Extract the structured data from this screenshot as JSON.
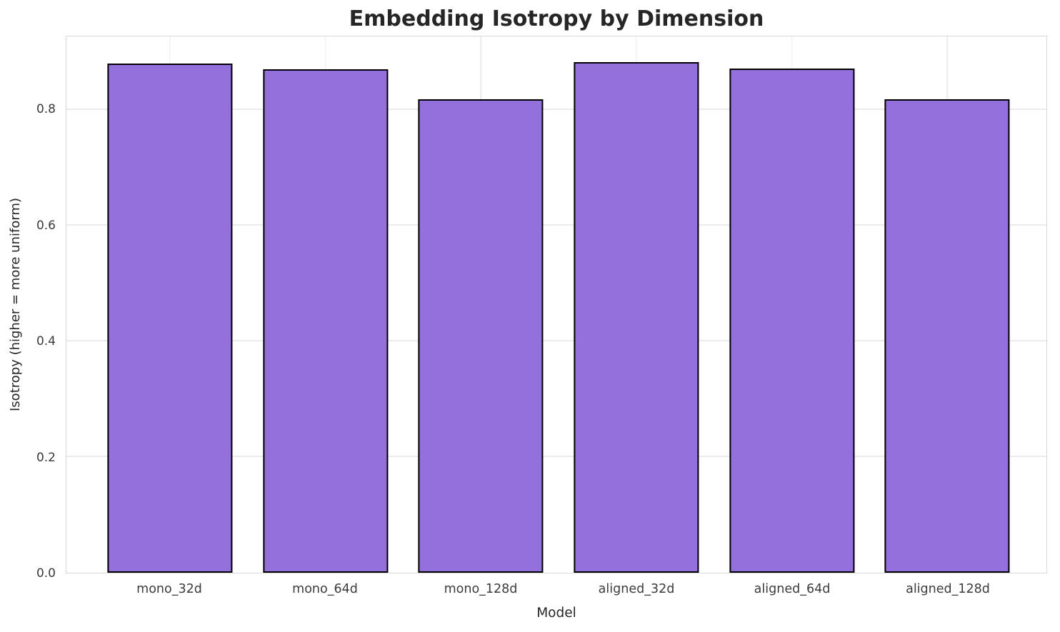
{
  "chart_data": {
    "type": "bar",
    "title": "Embedding Isotropy by Dimension",
    "xlabel": "Model",
    "ylabel": "Isotropy (higher = more uniform)",
    "categories": [
      "mono_32d",
      "mono_64d",
      "mono_128d",
      "aligned_32d",
      "aligned_64d",
      "aligned_128d"
    ],
    "values": [
      0.88,
      0.87,
      0.818,
      0.882,
      0.871,
      0.819
    ],
    "ylim": [
      0,
      0.927
    ],
    "yticks": [
      0.0,
      0.2,
      0.4,
      0.6,
      0.8
    ],
    "ytick_labels": [
      "0.0",
      "0.2",
      "0.4",
      "0.6",
      "0.8"
    ],
    "grid": true,
    "legend": "none",
    "colors": {
      "bar_fill": "#9370DB",
      "bar_edge": "#000000",
      "gridline": "#ebebeb",
      "spine": "#d9d9d9",
      "title_text": "#262626",
      "tick_text": "#3b3b3b"
    }
  }
}
